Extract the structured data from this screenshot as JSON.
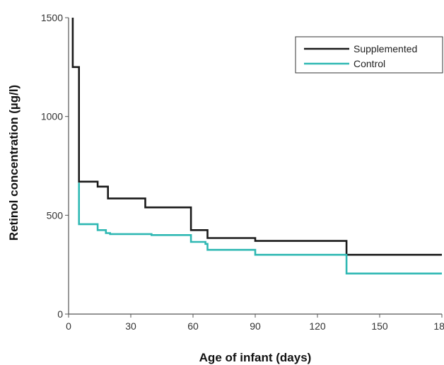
{
  "chart_data": {
    "type": "line",
    "step": true,
    "xlabel": "Age of infant (days)",
    "ylabel": "Retinol concentration (µg/l)",
    "xlim": [
      0,
      180
    ],
    "ylim": [
      0,
      1500
    ],
    "xticks": [
      0,
      30,
      60,
      90,
      120,
      150,
      180
    ],
    "yticks": [
      0,
      500,
      1000,
      1500
    ],
    "grid": false,
    "legend_position": "top-right",
    "series": [
      {
        "name": "Supplemented",
        "color": "#1a1a1a",
        "points": [
          [
            2,
            1500
          ],
          [
            2,
            1250
          ],
          [
            5,
            1250
          ],
          [
            5,
            670
          ],
          [
            14,
            670
          ],
          [
            14,
            645
          ],
          [
            19,
            645
          ],
          [
            19,
            585
          ],
          [
            37,
            585
          ],
          [
            37,
            540
          ],
          [
            59,
            540
          ],
          [
            59,
            425
          ],
          [
            67,
            425
          ],
          [
            67,
            385
          ],
          [
            90,
            385
          ],
          [
            90,
            370
          ],
          [
            134,
            370
          ],
          [
            134,
            300
          ],
          [
            180,
            300
          ]
        ]
      },
      {
        "name": "Control",
        "color": "#2fb8b3",
        "points": [
          [
            5,
            665
          ],
          [
            5,
            455
          ],
          [
            14,
            455
          ],
          [
            14,
            425
          ],
          [
            18,
            425
          ],
          [
            18,
            410
          ],
          [
            20,
            410
          ],
          [
            20,
            405
          ],
          [
            40,
            405
          ],
          [
            40,
            400
          ],
          [
            59,
            400
          ],
          [
            59,
            365
          ],
          [
            66,
            365
          ],
          [
            66,
            355
          ],
          [
            67,
            355
          ],
          [
            67,
            325
          ],
          [
            90,
            325
          ],
          [
            90,
            300
          ],
          [
            134,
            300
          ],
          [
            134,
            205
          ],
          [
            180,
            205
          ]
        ]
      }
    ]
  }
}
